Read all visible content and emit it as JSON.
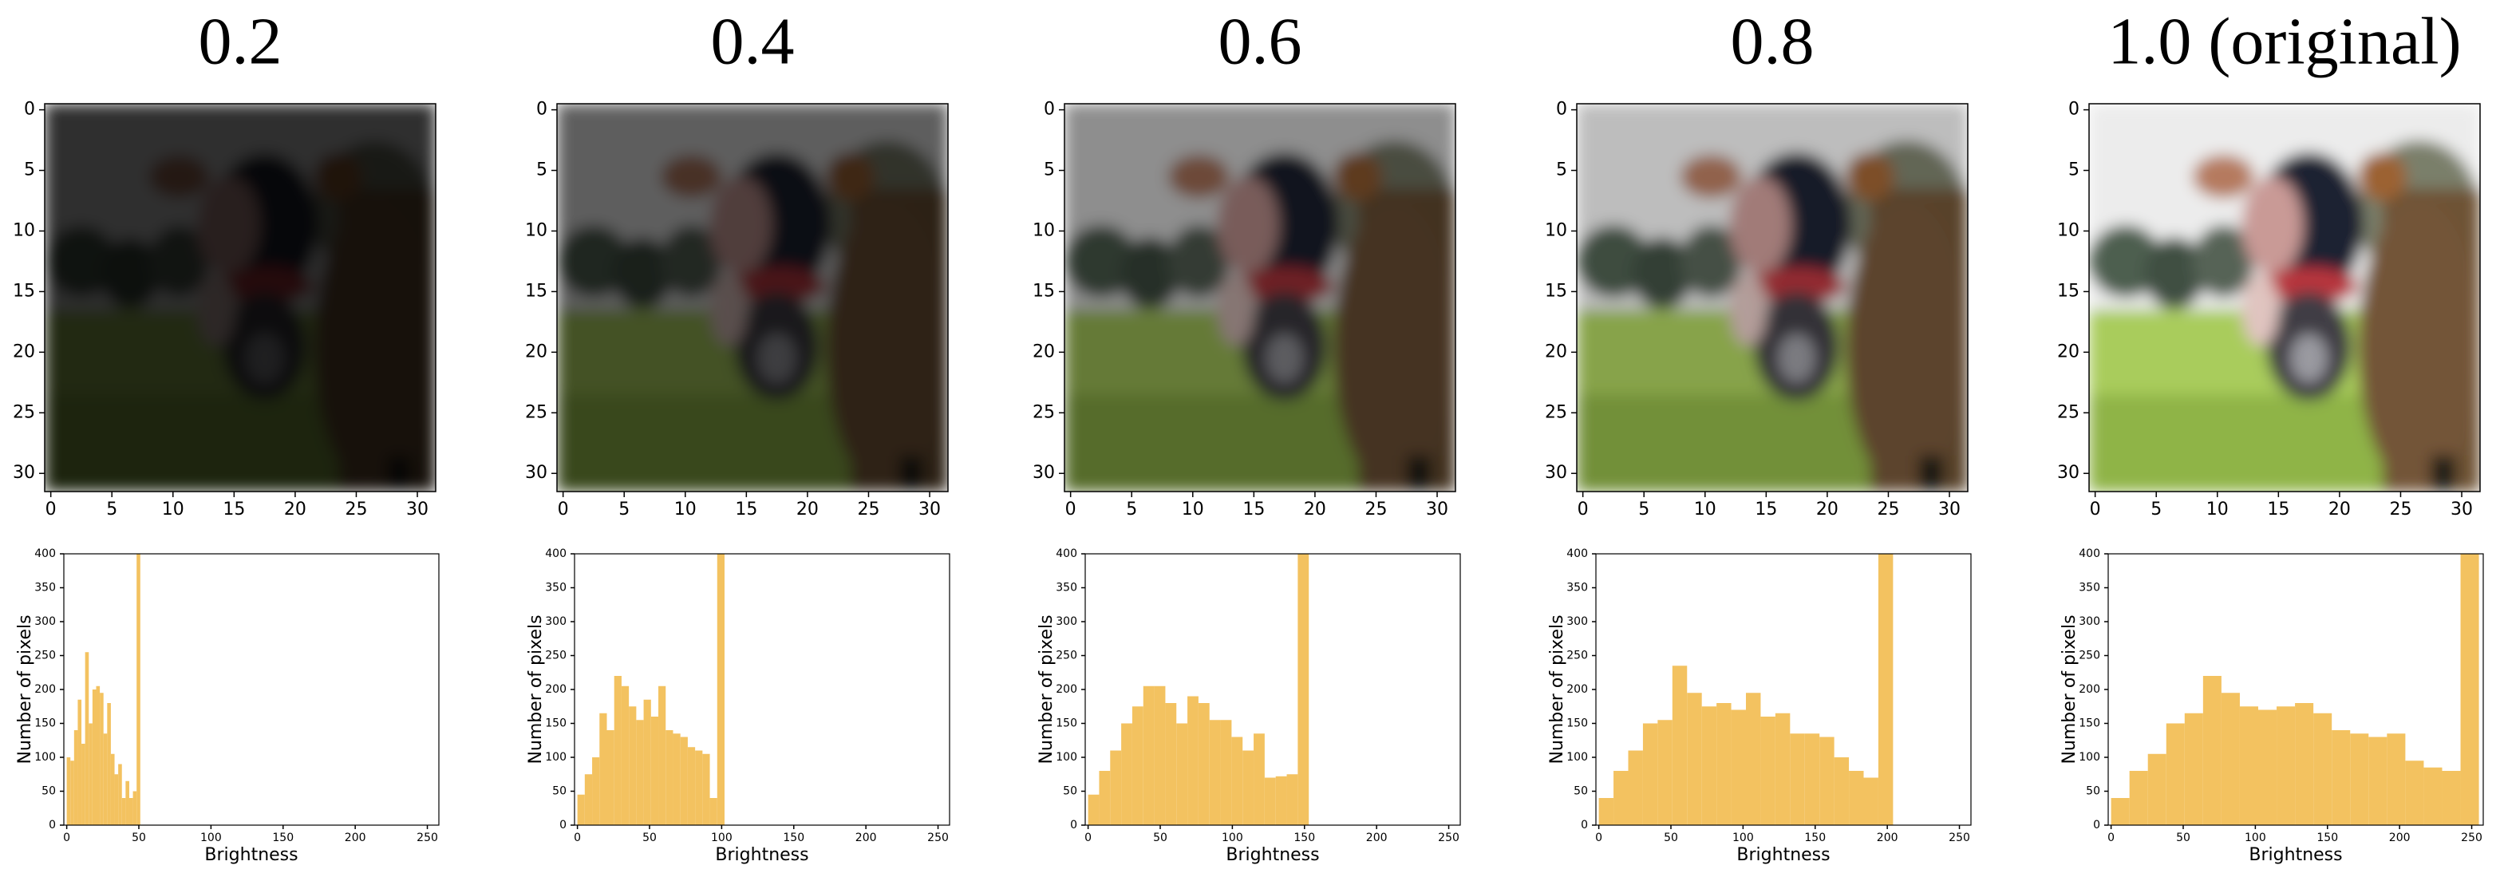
{
  "chart_data": [
    {
      "type": "image",
      "title": "0.2",
      "xlim": [
        -0.5,
        31.5
      ],
      "ylim": [
        31.5,
        -0.5
      ],
      "xticks": [
        0,
        5,
        10,
        15,
        20,
        25,
        30
      ],
      "yticks": [
        0,
        5,
        10,
        15,
        20,
        25,
        30
      ]
    },
    {
      "type": "histogram",
      "xlabel": "Brightness",
      "ylabel": "Number of pixels",
      "color": "#f3c260",
      "bins": [
        0,
        2.55,
        5.1,
        7.65,
        10.2,
        12.75,
        15.3,
        17.85,
        20.4,
        22.95,
        25.5,
        28.05,
        30.6,
        33.15,
        35.7,
        38.25,
        40.8,
        43.35,
        45.9,
        48.45,
        51
      ],
      "values": [
        100,
        95,
        140,
        185,
        120,
        255,
        150,
        200,
        205,
        195,
        135,
        180,
        105,
        75,
        90,
        40,
        65,
        40,
        50,
        400
      ],
      "xlim": [
        -2,
        258
      ],
      "ylim": [
        0,
        400
      ],
      "xticks": [
        0,
        50,
        100,
        150,
        200,
        250
      ],
      "yticks": [
        0,
        50,
        100,
        150,
        200,
        250,
        300,
        350,
        400
      ]
    },
    {
      "type": "image",
      "title": "0.4",
      "xlim": [
        -0.5,
        31.5
      ],
      "ylim": [
        31.5,
        -0.5
      ],
      "xticks": [
        0,
        5,
        10,
        15,
        20,
        25,
        30
      ],
      "yticks": [
        0,
        5,
        10,
        15,
        20,
        25,
        30
      ]
    },
    {
      "type": "histogram",
      "xlabel": "Brightness",
      "ylabel": "Number of pixels",
      "color": "#f3c260",
      "bins": [
        0,
        5.1,
        10.2,
        15.3,
        20.4,
        25.5,
        30.6,
        35.7,
        40.8,
        45.9,
        51,
        56.1,
        61.2,
        66.3,
        71.4,
        76.5,
        81.6,
        86.7,
        91.8,
        96.9,
        102
      ],
      "values": [
        45,
        75,
        100,
        165,
        140,
        220,
        205,
        175,
        155,
        185,
        160,
        205,
        140,
        135,
        130,
        115,
        110,
        105,
        40,
        400
      ],
      "xlim": [
        -2,
        258
      ],
      "ylim": [
        0,
        400
      ],
      "xticks": [
        0,
        50,
        100,
        150,
        200,
        250
      ],
      "yticks": [
        0,
        50,
        100,
        150,
        200,
        250,
        300,
        350,
        400
      ]
    },
    {
      "type": "image",
      "title": "0.6",
      "xlim": [
        -0.5,
        31.5
      ],
      "ylim": [
        31.5,
        -0.5
      ],
      "xticks": [
        0,
        5,
        10,
        15,
        20,
        25,
        30
      ],
      "yticks": [
        0,
        5,
        10,
        15,
        20,
        25,
        30
      ]
    },
    {
      "type": "histogram",
      "xlabel": "Brightness",
      "ylabel": "Number of pixels",
      "color": "#f3c260",
      "bins": [
        0,
        7.65,
        15.3,
        22.95,
        30.6,
        38.25,
        45.9,
        53.55,
        61.2,
        68.85,
        76.5,
        84.15,
        91.8,
        99.45,
        107.1,
        114.75,
        122.4,
        130.05,
        137.7,
        145.35,
        153
      ],
      "values": [
        45,
        80,
        110,
        150,
        175,
        205,
        205,
        180,
        150,
        190,
        180,
        155,
        155,
        130,
        110,
        135,
        70,
        72,
        75,
        400
      ],
      "xlim": [
        -2,
        258
      ],
      "ylim": [
        0,
        400
      ],
      "xticks": [
        0,
        50,
        100,
        150,
        200,
        250
      ],
      "yticks": [
        0,
        50,
        100,
        150,
        200,
        250,
        300,
        350,
        400
      ]
    },
    {
      "type": "image",
      "title": "0.8",
      "xlim": [
        -0.5,
        31.5
      ],
      "ylim": [
        31.5,
        -0.5
      ],
      "xticks": [
        0,
        5,
        10,
        15,
        20,
        25,
        30
      ],
      "yticks": [
        0,
        5,
        10,
        15,
        20,
        25,
        30
      ]
    },
    {
      "type": "histogram",
      "xlabel": "Brightness",
      "ylabel": "Number of pixels",
      "color": "#f3c260",
      "bins": [
        0,
        10.2,
        20.4,
        30.6,
        40.8,
        51,
        61.2,
        71.4,
        81.6,
        91.8,
        102,
        112.2,
        122.4,
        132.6,
        142.8,
        153,
        163.2,
        173.4,
        183.6,
        193.8,
        204
      ],
      "values": [
        40,
        80,
        110,
        150,
        155,
        235,
        195,
        175,
        180,
        170,
        195,
        160,
        165,
        135,
        135,
        130,
        100,
        80,
        70,
        400
      ],
      "xlim": [
        -2,
        258
      ],
      "ylim": [
        0,
        400
      ],
      "xticks": [
        0,
        50,
        100,
        150,
        200,
        250
      ],
      "yticks": [
        0,
        50,
        100,
        150,
        200,
        250,
        300,
        350,
        400
      ]
    },
    {
      "type": "image",
      "title": "1.0 (original)",
      "xlim": [
        -0.5,
        31.5
      ],
      "ylim": [
        31.5,
        -0.5
      ],
      "xticks": [
        0,
        5,
        10,
        15,
        20,
        25,
        30
      ],
      "yticks": [
        0,
        5,
        10,
        15,
        20,
        25,
        30
      ]
    },
    {
      "type": "histogram",
      "xlabel": "Brightness",
      "ylabel": "Number of pixels",
      "color": "#f3c260",
      "bins": [
        0,
        12.75,
        25.5,
        38.25,
        51,
        63.75,
        76.5,
        89.25,
        102,
        114.75,
        127.5,
        140.25,
        153,
        165.75,
        178.5,
        191.25,
        204,
        216.75,
        229.5,
        242.25,
        255
      ],
      "values": [
        40,
        80,
        105,
        150,
        165,
        220,
        195,
        175,
        170,
        175,
        180,
        165,
        140,
        135,
        130,
        135,
        95,
        85,
        80,
        400
      ],
      "xlim": [
        -2,
        258
      ],
      "ylim": [
        0,
        400
      ],
      "xticks": [
        0,
        50,
        100,
        150,
        200,
        250
      ],
      "yticks": [
        0,
        50,
        100,
        150,
        200,
        250,
        300,
        350,
        400
      ]
    }
  ]
}
